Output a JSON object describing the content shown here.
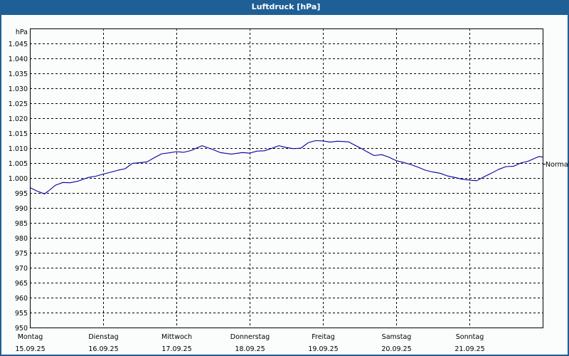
{
  "window": {
    "title": "Luftdruck [hPa]"
  },
  "chart_data": {
    "type": "line",
    "title": "Luftdruck [hPa]",
    "ylabel": "hPa",
    "xlabel": "",
    "ylim": [
      950,
      1050
    ],
    "y_ticks": [
      "950",
      "955",
      "960",
      "965",
      "970",
      "975",
      "980",
      "985",
      "990",
      "995",
      "1.000",
      "1.005",
      "1.010",
      "1.015",
      "1.020",
      "1.025",
      "1.030",
      "1.035",
      "1.040",
      "1.045"
    ],
    "y_tick_values": [
      950,
      955,
      960,
      965,
      970,
      975,
      980,
      985,
      990,
      995,
      1000,
      1005,
      1010,
      1015,
      1020,
      1025,
      1030,
      1035,
      1040,
      1045
    ],
    "categories": [
      {
        "day": "Montag",
        "date": "15.09.25"
      },
      {
        "day": "Dienstag",
        "date": "16.09.25"
      },
      {
        "day": "Mittwoch",
        "date": "17.09.25"
      },
      {
        "day": "Donnerstag",
        "date": "18.09.25"
      },
      {
        "day": "Freitag",
        "date": "19.09.25"
      },
      {
        "day": "Samstag",
        "date": "20.09.25"
      },
      {
        "day": "Sonntag",
        "date": "21.09.25"
      }
    ],
    "reference_line": {
      "label": "Normal",
      "value": 1004.7
    },
    "grid": true,
    "line_color": "#0000a0",
    "series": [
      {
        "name": "Luftdruck",
        "x_days": [
          0,
          0.1,
          0.2,
          0.25,
          0.35,
          0.45,
          0.55,
          0.65,
          0.8,
          0.9,
          1.0,
          1.1,
          1.2,
          1.3,
          1.4,
          1.5,
          1.6,
          1.7,
          1.8,
          1.9,
          2.0,
          2.1,
          2.2,
          2.35,
          2.5,
          2.6,
          2.75,
          2.9,
          3.0,
          3.1,
          3.2,
          3.3,
          3.4,
          3.5,
          3.6,
          3.7,
          3.8,
          3.9,
          4.0,
          4.1,
          4.2,
          4.35,
          4.5,
          4.6,
          4.7,
          4.8,
          4.9,
          5.0,
          5.1,
          5.2,
          5.3,
          5.4,
          5.5,
          5.6,
          5.7,
          5.8,
          5.9,
          6.0,
          6.1,
          6.2,
          6.3,
          6.4,
          6.5,
          6.6,
          6.7,
          6.8,
          6.95,
          7.0
        ],
        "values": [
          996.8,
          995.6,
          994.7,
          995.6,
          997.6,
          998.5,
          998.4,
          998.9,
          1000.2,
          1000.6,
          1001.3,
          1001.9,
          1002.6,
          1003.1,
          1004.9,
          1005.1,
          1005.4,
          1006.8,
          1008.1,
          1008.4,
          1008.8,
          1008.6,
          1009.2,
          1010.8,
          1009.5,
          1008.5,
          1008.0,
          1008.5,
          1008.3,
          1009.0,
          1009.1,
          1009.9,
          1010.8,
          1010.2,
          1009.8,
          1010.0,
          1011.8,
          1012.5,
          1012.4,
          1012.0,
          1012.3,
          1012.1,
          1010.2,
          1008.8,
          1007.5,
          1007.8,
          1007.0,
          1005.8,
          1005.2,
          1004.5,
          1003.6,
          1002.6,
          1002.0,
          1001.6,
          1000.7,
          1000.2,
          999.6,
          999.3,
          999.1,
          1000.4,
          1001.6,
          1002.9,
          1003.8,
          1003.9,
          1005.0,
          1005.6,
          1007.2,
          1007.0
        ]
      }
    ]
  }
}
